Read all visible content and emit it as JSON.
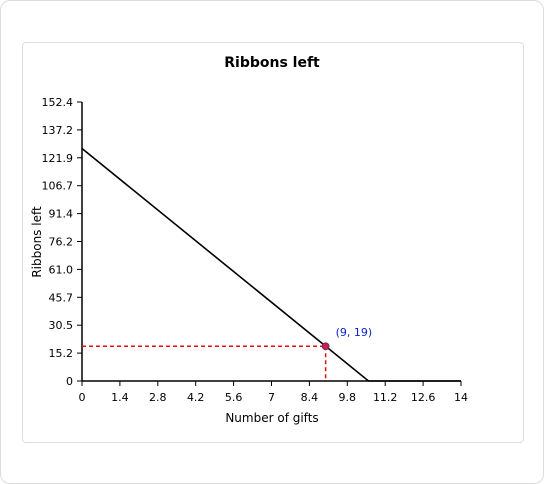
{
  "chart_data": {
    "type": "line",
    "title": "Ribbons left",
    "xlabel": "Number of gifts",
    "ylabel": "Ribbons left",
    "xlim": [
      0,
      14
    ],
    "ylim": [
      0,
      152.4
    ],
    "x_ticks": [
      "0",
      "1.4",
      "2.8",
      "4.2",
      "5.6",
      "7",
      "8.4",
      "9.8",
      "11.2",
      "12.6",
      "14"
    ],
    "y_ticks": [
      "0",
      "15.2",
      "30.5",
      "45.7",
      "61.0",
      "76.2",
      "91.4",
      "106.7",
      "121.9",
      "137.2",
      "152.4"
    ],
    "grid": false,
    "legend": "none",
    "series": [
      {
        "points": [
          [
            0,
            127
          ],
          [
            10.583,
            0
          ],
          [
            14,
            0
          ]
        ],
        "color": "#000000"
      }
    ],
    "highlight": {
      "x": 9,
      "y": 19,
      "label": "(9, 19)",
      "point_color": "#cc1f3a",
      "label_color": "#0a1fd1",
      "guide_color": "#e01010"
    }
  }
}
